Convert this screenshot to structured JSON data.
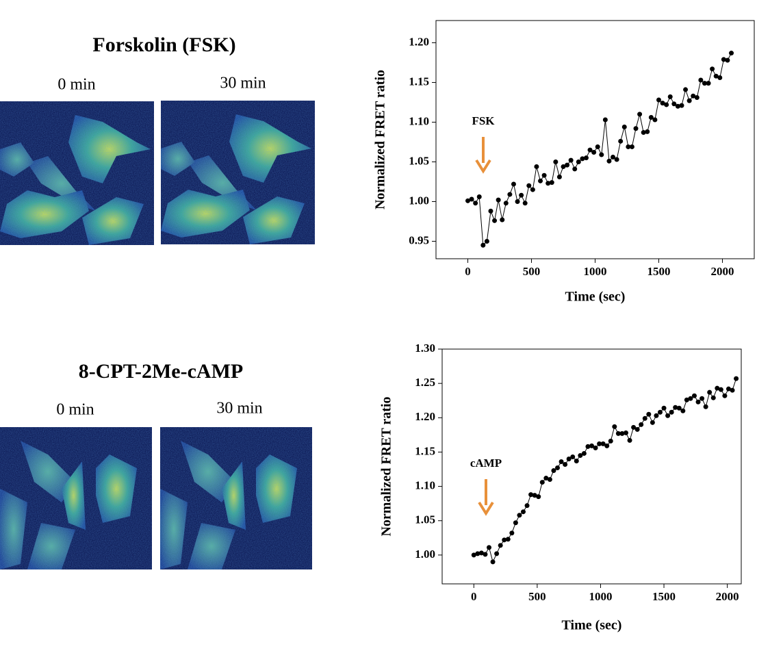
{
  "images": [
    {
      "title": "Forskolin (FSK)",
      "times": [
        "0 min",
        "30 min"
      ]
    },
    {
      "title": "8-CPT-2Me-cAMP",
      "times": [
        "0 min",
        "30 min"
      ]
    }
  ],
  "chart_data": [
    {
      "type": "line",
      "annotation": "FSK",
      "color": "#000000",
      "arrow_color": "#e8903a",
      "xlabel": "Time (sec)",
      "ylabel": "Normalized FRET ratio",
      "xlim": [
        -250,
        2250
      ],
      "xticks": [
        0,
        500,
        1000,
        1500,
        2000
      ],
      "ylim": [
        0.928,
        1.228
      ],
      "yticks": [
        {
          "value": 0.95,
          "label": "0.95"
        },
        {
          "value": 1.0,
          "label": "1.00"
        },
        {
          "value": 1.05,
          "label": "1.05"
        },
        {
          "value": 1.1,
          "label": "1.10"
        },
        {
          "value": 1.15,
          "label": "1.15"
        },
        {
          "value": 1.2,
          "label": "1.20"
        }
      ],
      "x": [
        0,
        30,
        60,
        90,
        120,
        150,
        180,
        210,
        240,
        270,
        300,
        330,
        360,
        390,
        420,
        450,
        480,
        510,
        540,
        570,
        600,
        630,
        660,
        690,
        720,
        750,
        780,
        810,
        840,
        870,
        900,
        930,
        960,
        990,
        1020,
        1050,
        1080,
        1110,
        1140,
        1170,
        1200,
        1230,
        1260,
        1290,
        1320,
        1350,
        1380,
        1410,
        1440,
        1470,
        1500,
        1530,
        1560,
        1590,
        1620,
        1650,
        1680,
        1710,
        1740,
        1770,
        1800,
        1830,
        1860,
        1890,
        1920,
        1950,
        1980,
        2010,
        2040,
        2070
      ],
      "values": [
        1.001,
        1.003,
        0.998,
        1.006,
        0.945,
        0.95,
        0.988,
        0.976,
        1.002,
        0.977,
        0.998,
        1.009,
        1.022,
        1.0,
        1.008,
        0.998,
        1.02,
        1.015,
        1.044,
        1.026,
        1.033,
        1.023,
        1.024,
        1.05,
        1.031,
        1.044,
        1.046,
        1.052,
        1.041,
        1.05,
        1.054,
        1.055,
        1.065,
        1.062,
        1.069,
        1.059,
        1.103,
        1.051,
        1.056,
        1.053,
        1.076,
        1.094,
        1.069,
        1.069,
        1.092,
        1.11,
        1.087,
        1.088,
        1.106,
        1.103,
        1.128,
        1.124,
        1.122,
        1.132,
        1.123,
        1.12,
        1.121,
        1.141,
        1.127,
        1.133,
        1.131,
        1.153,
        1.149,
        1.149,
        1.167,
        1.158,
        1.156,
        1.179,
        1.178,
        1.187
      ]
    },
    {
      "type": "line",
      "annotation": "cAMP",
      "color": "#000000",
      "arrow_color": "#e8903a",
      "xlabel": "Time (sec)",
      "ylabel": "Normalized FRET ratio",
      "xlim": [
        -250,
        2110
      ],
      "xticks": [
        0,
        500,
        1000,
        1500,
        2000
      ],
      "ylim": [
        0.958,
        1.3
      ],
      "yticks": [
        {
          "value": 1.0,
          "label": "1.00"
        },
        {
          "value": 1.05,
          "label": "1.05"
        },
        {
          "value": 1.1,
          "label": "1.10"
        },
        {
          "value": 1.15,
          "label": "1.15"
        },
        {
          "value": 1.2,
          "label": "1.20"
        },
        {
          "value": 1.25,
          "label": "1.25"
        },
        {
          "value": 1.3,
          "label": "1.30"
        }
      ],
      "x": [
        0,
        30,
        60,
        90,
        120,
        150,
        180,
        210,
        240,
        270,
        300,
        330,
        360,
        390,
        420,
        450,
        480,
        510,
        540,
        570,
        600,
        630,
        660,
        690,
        720,
        750,
        780,
        810,
        840,
        870,
        900,
        930,
        960,
        990,
        1020,
        1050,
        1080,
        1110,
        1140,
        1170,
        1200,
        1230,
        1260,
        1290,
        1320,
        1350,
        1380,
        1410,
        1440,
        1470,
        1500,
        1530,
        1560,
        1590,
        1620,
        1650,
        1680,
        1710,
        1740,
        1770,
        1800,
        1830,
        1860,
        1890,
        1920,
        1950,
        1980,
        2010,
        2040,
        2070
      ],
      "values": [
        1.0,
        1.002,
        1.003,
        1.001,
        1.011,
        0.99,
        1.002,
        1.014,
        1.022,
        1.023,
        1.032,
        1.047,
        1.058,
        1.063,
        1.072,
        1.088,
        1.087,
        1.085,
        1.106,
        1.112,
        1.11,
        1.123,
        1.127,
        1.136,
        1.132,
        1.14,
        1.143,
        1.137,
        1.145,
        1.148,
        1.158,
        1.159,
        1.156,
        1.162,
        1.162,
        1.159,
        1.166,
        1.187,
        1.177,
        1.177,
        1.178,
        1.167,
        1.186,
        1.183,
        1.19,
        1.199,
        1.205,
        1.193,
        1.203,
        1.208,
        1.214,
        1.203,
        1.208,
        1.215,
        1.214,
        1.21,
        1.226,
        1.228,
        1.232,
        1.223,
        1.228,
        1.216,
        1.237,
        1.229,
        1.243,
        1.241,
        1.232,
        1.242,
        1.24,
        1.257
      ]
    }
  ]
}
